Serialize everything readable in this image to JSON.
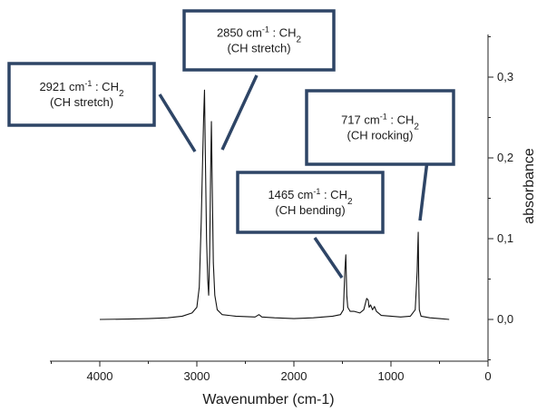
{
  "chart_data": {
    "type": "line",
    "title": "",
    "xlabel": "Wavenumber (cm-1)",
    "ylabel": "absorbance",
    "xlim": [
      4500,
      0
    ],
    "ylim": [
      -0.05,
      0.355
    ],
    "x_ticks": [
      4000,
      3000,
      2000,
      1000,
      0
    ],
    "x_tick_labels": [
      "4000",
      "3000",
      "2000",
      "1000",
      "0"
    ],
    "y_ticks": [
      0.0,
      0.1,
      0.2,
      0.3
    ],
    "y_tick_labels": [
      "0,0",
      "0,1",
      "0,2",
      "0,3"
    ],
    "grid": false,
    "colors": {
      "line": "#111111",
      "annotation_box": "#2e4566"
    },
    "series": [
      {
        "values": [
          [
            4000,
            0.0
          ],
          [
            3700,
            0.0005
          ],
          [
            3500,
            0.001
          ],
          [
            3300,
            0.002
          ],
          [
            3150,
            0.004
          ],
          [
            3050,
            0.008
          ],
          [
            3000,
            0.015
          ],
          [
            2975,
            0.04
          ],
          [
            2955,
            0.12
          ],
          [
            2940,
            0.2
          ],
          [
            2930,
            0.25
          ],
          [
            2921,
            0.284
          ],
          [
            2912,
            0.2
          ],
          [
            2900,
            0.1
          ],
          [
            2888,
            0.05
          ],
          [
            2878,
            0.03
          ],
          [
            2868,
            0.08
          ],
          [
            2858,
            0.18
          ],
          [
            2850,
            0.245
          ],
          [
            2842,
            0.17
          ],
          [
            2830,
            0.07
          ],
          [
            2815,
            0.03
          ],
          [
            2790,
            0.012
          ],
          [
            2740,
            0.006
          ],
          [
            2600,
            0.004
          ],
          [
            2400,
            0.003
          ],
          [
            2360,
            0.006
          ],
          [
            2330,
            0.003
          ],
          [
            2200,
            0.002
          ],
          [
            2000,
            0.001
          ],
          [
            1800,
            0.002
          ],
          [
            1600,
            0.004
          ],
          [
            1520,
            0.006
          ],
          [
            1490,
            0.012
          ],
          [
            1475,
            0.06
          ],
          [
            1465,
            0.08
          ],
          [
            1455,
            0.03
          ],
          [
            1445,
            0.015
          ],
          [
            1420,
            0.01
          ],
          [
            1378,
            0.01
          ],
          [
            1320,
            0.008
          ],
          [
            1280,
            0.012
          ],
          [
            1250,
            0.026
          ],
          [
            1235,
            0.024
          ],
          [
            1225,
            0.015
          ],
          [
            1210,
            0.018
          ],
          [
            1190,
            0.012
          ],
          [
            1170,
            0.016
          ],
          [
            1150,
            0.01
          ],
          [
            1100,
            0.005
          ],
          [
            1000,
            0.004
          ],
          [
            900,
            0.003
          ],
          [
            800,
            0.004
          ],
          [
            750,
            0.012
          ],
          [
            730,
            0.06
          ],
          [
            725,
            0.085
          ],
          [
            719,
            0.108
          ],
          [
            714,
            0.05
          ],
          [
            708,
            0.012
          ],
          [
            690,
            0.004
          ],
          [
            600,
            0.002
          ],
          [
            500,
            0.001
          ],
          [
            400,
            0.0
          ]
        ]
      }
    ],
    "annotations": [
      {
        "id": "2921",
        "label": "2921 cm",
        "sup": "-1",
        "suffix": " : CH",
        "sub": "2",
        "line2": "(CH stretch)",
        "x": 2921
      },
      {
        "id": "2850",
        "label": "2850 cm",
        "sup": "-1",
        "suffix": " : CH",
        "sub": "2",
        "line2": "(CH stretch)",
        "x": 2850
      },
      {
        "id": "1465",
        "label": "1465 cm",
        "sup": "-1",
        "suffix": " : CH",
        "sub": "2",
        "line2": "(CH bending)",
        "x": 1465
      },
      {
        "id": "717",
        "label": "717 cm",
        "sup": "-1",
        "suffix": " : CH",
        "sub": "2",
        "line2": "(CH rocking)",
        "x": 717
      }
    ]
  }
}
